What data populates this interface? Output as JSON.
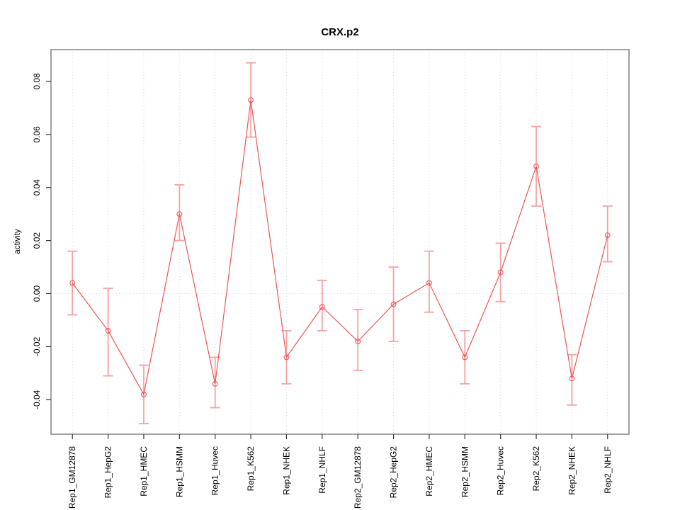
{
  "page": {
    "background": "#ffffff"
  },
  "chart_data": {
    "type": "line",
    "title": "CRX.p2",
    "xlabel": "",
    "ylabel": "activity",
    "categories": [
      "Rep1_GM12878",
      "Rep1_HepG2",
      "Rep1_HMEC",
      "Rep1_HSMM",
      "Rep1_Huvec",
      "Rep1_K562",
      "Rep1_NHEK",
      "Rep1_NHLF",
      "Rep2_GM12878",
      "Rep2_HepG2",
      "Rep2_HMEC",
      "Rep2_HSMM",
      "Rep2_Huvec",
      "Rep2_K562",
      "Rep2_NHEK",
      "Rep2_NHLF"
    ],
    "series": [
      {
        "name": "activity",
        "values": [
          0.004,
          -0.014,
          -0.038,
          0.03,
          -0.034,
          0.073,
          -0.024,
          -0.005,
          -0.018,
          -0.004,
          0.004,
          -0.024,
          0.008,
          0.048,
          -0.032,
          0.022
        ],
        "error_low": [
          -0.008,
          -0.031,
          -0.049,
          0.02,
          -0.043,
          0.059,
          -0.034,
          -0.014,
          -0.029,
          -0.018,
          -0.007,
          -0.034,
          -0.003,
          0.033,
          -0.042,
          0.012
        ],
        "error_high": [
          0.016,
          0.002,
          -0.027,
          0.041,
          -0.024,
          0.087,
          -0.014,
          0.005,
          -0.006,
          0.01,
          0.016,
          -0.014,
          0.019,
          0.063,
          -0.023,
          0.033
        ]
      }
    ],
    "yticks": [
      {
        "v": -0.04,
        "label": "-0.04"
      },
      {
        "v": -0.02,
        "label": "-0.02"
      },
      {
        "v": 0.0,
        "label": "0.00"
      },
      {
        "v": 0.02,
        "label": "0.02"
      },
      {
        "v": 0.04,
        "label": "0.04"
      },
      {
        "v": 0.06,
        "label": "0.06"
      },
      {
        "v": 0.08,
        "label": "0.08"
      }
    ],
    "ylim": [
      -0.053,
      0.092
    ],
    "grid": {
      "vertical_dotted_at_each_category": true,
      "horizontal_dotted_at_zero": true
    },
    "legend_position": "none",
    "marker": "open-circle",
    "colors": {
      "line": "#f05454",
      "point": "#f05454",
      "error_bar": "#f6a2a2",
      "box": "#808080",
      "tick": "#333333",
      "grid": "#d9d9d9",
      "text": "#000000"
    }
  }
}
